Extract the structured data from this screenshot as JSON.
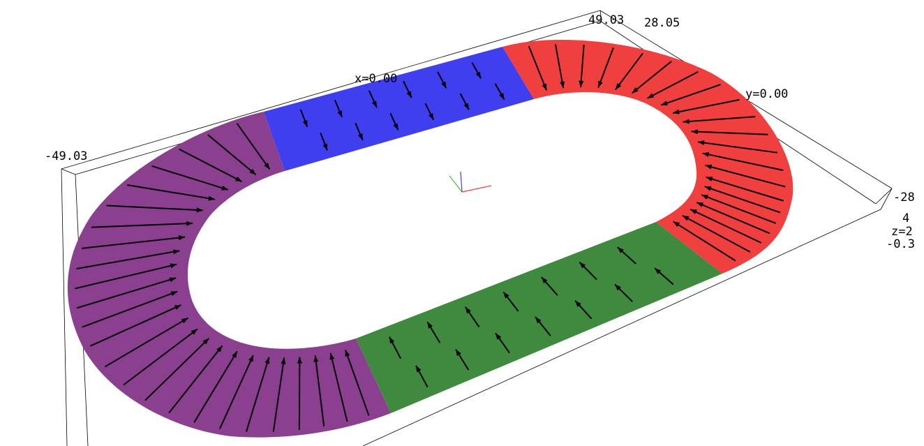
{
  "axis_labels": {
    "x_min": "-49.03",
    "x_max": "49.03",
    "y_max": "28.05",
    "y_min": "-28",
    "x_zero": "x=0.00",
    "y_zero": "y=0.00",
    "z_top": "4",
    "z_mid": "z=2",
    "z_bottom": "-0.3"
  },
  "segments": [
    {
      "name": "blue-straight",
      "color": "#3f3fef"
    },
    {
      "name": "red-curve",
      "color": "#ef3f3f"
    },
    {
      "name": "green-straight",
      "color": "#3f8a3f"
    },
    {
      "name": "purple-curve",
      "color": "#8a3f8f"
    }
  ],
  "arrow_color": "#000000",
  "orientation_gizmo": {
    "x": "#ef3f3f",
    "y": "#3fbf3f",
    "z": "#3f3fef"
  }
}
